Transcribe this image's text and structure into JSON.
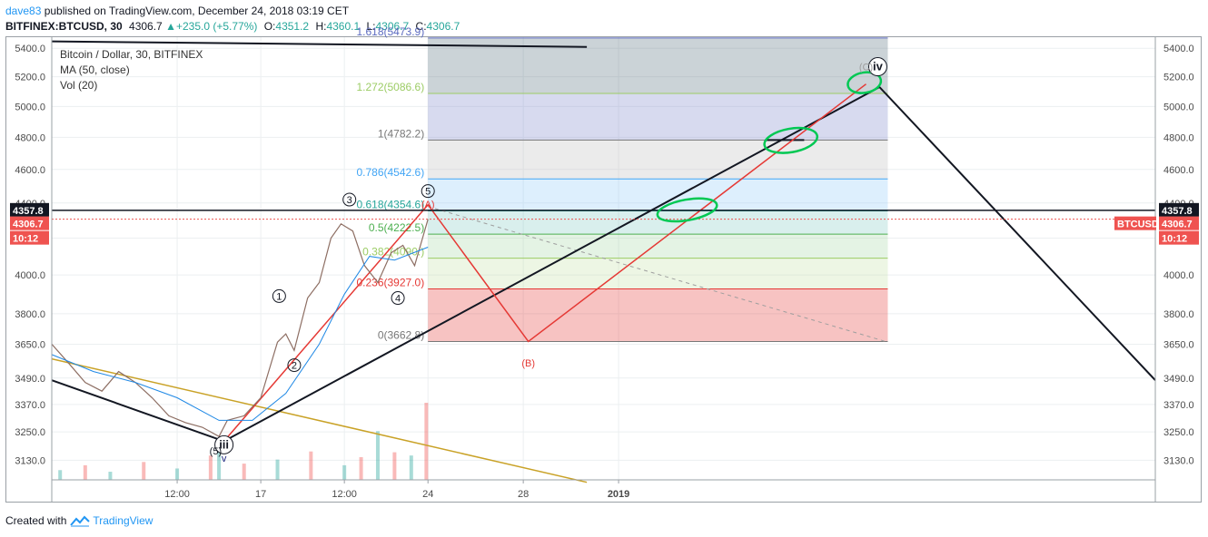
{
  "header": {
    "author": "dave83",
    "published_text": " published on TradingView.com, December 24, 2018 03:19 CET",
    "symbol": "BITFINEX:BTCUSD, 30",
    "last": "4306.7",
    "change": "+235.0 (+5.77%)",
    "o_label": "O:",
    "o_value": "4351.2",
    "h_label": "H:",
    "h_value": "4360.1",
    "l_label": "L:",
    "l_value": "4306.7",
    "c_label": "C:",
    "c_value": "4306.7"
  },
  "legend": {
    "title": "Bitcoin / Dollar, 30, BITFINEX",
    "ma": "MA (50, close)",
    "vol": "Vol (20)"
  },
  "footer": {
    "created_with": "Created with",
    "brand": "TradingView"
  },
  "badges": {
    "hline_price": "4357.8",
    "last_price": "4306.7",
    "countdown": "10:12",
    "symbol_tag": "BTCUSD"
  },
  "chart_data": {
    "type": "line",
    "title": "Bitcoin / Dollar, 30, BITFINEX",
    "y_scale": "log",
    "ylim": [
      3050,
      5480
    ],
    "y_ticks": [
      3130.0,
      3250.0,
      3370.0,
      3490.0,
      3650.0,
      3800.0,
      4000.0,
      4200.0,
      4400.0,
      4600.0,
      4800.0,
      5000.0,
      5200.0,
      5400.0
    ],
    "y_tick_labels": [
      "3130.0",
      "3250.0",
      "3370.0",
      "3490.0",
      "3650.0",
      "3800.0",
      "4000.0",
      "4200.0",
      "4400.0",
      "4600.0",
      "4800.0",
      "5000.0",
      "5200.0",
      "5400.0"
    ],
    "x_ticks": [
      {
        "t": 0.5,
        "label": "12:00"
      },
      {
        "t": 1.0,
        "label": "17"
      },
      {
        "t": 1.5,
        "label": "12:00"
      },
      {
        "t": 2.0,
        "label": "24"
      },
      {
        "t": 2.57,
        "label": "28"
      },
      {
        "t": 3.14,
        "label": "2019"
      }
    ],
    "x_range": [
      -0.25,
      6.35
    ],
    "price_series": {
      "t": [
        -0.25,
        -0.15,
        -0.05,
        0.05,
        0.15,
        0.25,
        0.35,
        0.45,
        0.55,
        0.65,
        0.75,
        0.8,
        0.9,
        1.0,
        1.1,
        1.15,
        1.2,
        1.28,
        1.35,
        1.42,
        1.48,
        1.55,
        1.62,
        1.7,
        1.78,
        1.85,
        1.92,
        2.0
      ],
      "close": [
        3650,
        3560,
        3470,
        3430,
        3520,
        3470,
        3400,
        3320,
        3290,
        3270,
        3230,
        3300,
        3320,
        3400,
        3660,
        3700,
        3620,
        3880,
        3960,
        4200,
        4280,
        4240,
        4050,
        3960,
        4120,
        4160,
        4050,
        4306.7
      ]
    },
    "ma_series": {
      "t": [
        -0.25,
        0.0,
        0.25,
        0.5,
        0.75,
        0.95,
        1.15,
        1.35,
        1.5,
        1.65,
        1.8,
        2.0
      ],
      "values": [
        3600,
        3520,
        3470,
        3400,
        3300,
        3300,
        3420,
        3650,
        3900,
        4100,
        4080,
        4150
      ]
    },
    "volume_series": {
      "t": [
        -0.2,
        -0.05,
        0.1,
        0.3,
        0.5,
        0.7,
        0.75,
        0.9,
        1.1,
        1.3,
        1.5,
        1.6,
        1.7,
        1.8,
        1.9,
        1.99
      ],
      "values": [
        12,
        18,
        10,
        22,
        14,
        30,
        48,
        20,
        25,
        35,
        18,
        28,
        60,
        34,
        30,
        95
      ]
    },
    "fib": {
      "t_start": 2.0,
      "t_end": 4.75,
      "levels": [
        {
          "ratio": "0",
          "price": 3662.8,
          "label": "0(3662.8)",
          "color": "#787878"
        },
        {
          "ratio": "0.236",
          "price": 3927.0,
          "label": "0.236(3927.0)",
          "color": "#e53935"
        },
        {
          "ratio": "0.382",
          "price": 4090.0,
          "label": "0.382(4090.)",
          "color": "#9ccc65"
        },
        {
          "ratio": "0.5",
          "price": 4222.5,
          "label": "0.5(4222.5)",
          "color": "#4caf50"
        },
        {
          "ratio": "0.618",
          "price": 4354.6,
          "label": "0.618(4354.6)",
          "color": "#26a69a"
        },
        {
          "ratio": "0.786",
          "price": 4542.6,
          "label": "0.786(4542.6)",
          "color": "#42a5f5"
        },
        {
          "ratio": "1",
          "price": 4782.2,
          "label": "1(4782.2)",
          "color": "#787878"
        },
        {
          "ratio": "1.272",
          "price": 5086.6,
          "label": "1.272(5086.6)",
          "color": "#9ccc65"
        },
        {
          "ratio": "1.618",
          "price": 5473.9,
          "label": "1.618(5473.9)",
          "color": "#5c6bc0"
        }
      ],
      "bands": [
        {
          "from": 3662.8,
          "to": 3927.0,
          "color": "#e53935"
        },
        {
          "from": 3927.0,
          "to": 4090.0,
          "color": "#c5e1a5"
        },
        {
          "from": 4090.0,
          "to": 4222.5,
          "color": "#a5d6a7"
        },
        {
          "from": 4222.5,
          "to": 4354.6,
          "color": "#80cbc4"
        },
        {
          "from": 4354.6,
          "to": 4542.6,
          "color": "#90caf9"
        },
        {
          "from": 4542.6,
          "to": 4782.2,
          "color": "#bdbdbd"
        },
        {
          "from": 4782.2,
          "to": 5086.6,
          "color": "#7986cb"
        },
        {
          "from": 5086.6,
          "to": 5473.9,
          "color": "#546e7a"
        }
      ]
    },
    "horizontal_line": {
      "price": 4357.8
    },
    "last_price_line": {
      "price": 4306.7
    },
    "black_lines": [
      {
        "points": [
          [
            -0.25,
            3480
          ],
          [
            0.78,
            3210
          ],
          [
            4.7,
            5130
          ],
          [
            6.35,
            3480
          ]
        ]
      },
      {
        "points": [
          [
            -0.25,
            5450
          ],
          [
            2.95,
            5410
          ]
        ]
      },
      {
        "points": [
          [
            4.02,
            4782.2
          ],
          [
            4.25,
            4782.2
          ]
        ]
      }
    ],
    "red_lines": [
      {
        "points": [
          [
            0.78,
            3210
          ],
          [
            2.0,
            4390
          ],
          [
            2.6,
            3662.8
          ],
          [
            4.62,
            5150
          ]
        ]
      }
    ],
    "gold_line": {
      "points": [
        [
          -0.25,
          3580
        ],
        [
          2.95,
          3040
        ]
      ]
    },
    "dashed_line": {
      "points": [
        [
          2.0,
          4380
        ],
        [
          4.75,
          3660
        ]
      ]
    },
    "wave_labels": [
      {
        "t": 0.78,
        "price": 3195,
        "text": "iii",
        "circled": true,
        "bold": true
      },
      {
        "t": 0.73,
        "price": 3170,
        "text": "(5)",
        "circled": false
      },
      {
        "t": 0.78,
        "price": 3140,
        "text": "v",
        "circled": false,
        "color": "#1a237e"
      },
      {
        "t": 1.11,
        "price": 3890,
        "text": "1",
        "circled": true
      },
      {
        "t": 1.2,
        "price": 3550,
        "text": "2",
        "circled": true
      },
      {
        "t": 1.53,
        "price": 4420,
        "text": "3",
        "circled": true
      },
      {
        "t": 1.82,
        "price": 3880,
        "text": "4",
        "circled": true
      },
      {
        "t": 2.0,
        "price": 4470,
        "text": "5",
        "circled": true
      },
      {
        "t": 2.0,
        "price": 4395,
        "text": "(A)",
        "circled": false,
        "color": "#e53935"
      },
      {
        "t": 2.6,
        "price": 3560,
        "text": "(B)",
        "circled": false,
        "color": "#e53935"
      },
      {
        "t": 4.69,
        "price": 5270,
        "text": "iv",
        "circled": true,
        "bold": true
      },
      {
        "t": 4.62,
        "price": 5270,
        "text": "(C)",
        "circled": false,
        "color": "#9e9e9e"
      }
    ],
    "green_ellipses": [
      {
        "t": 3.55,
        "price": 4360,
        "rx_t": 0.18,
        "ry_price": 60
      },
      {
        "t": 4.17,
        "price": 4780,
        "rx_t": 0.16,
        "ry_price": 75
      },
      {
        "t": 4.61,
        "price": 5160,
        "rx_t": 0.1,
        "ry_price": 70
      }
    ]
  }
}
